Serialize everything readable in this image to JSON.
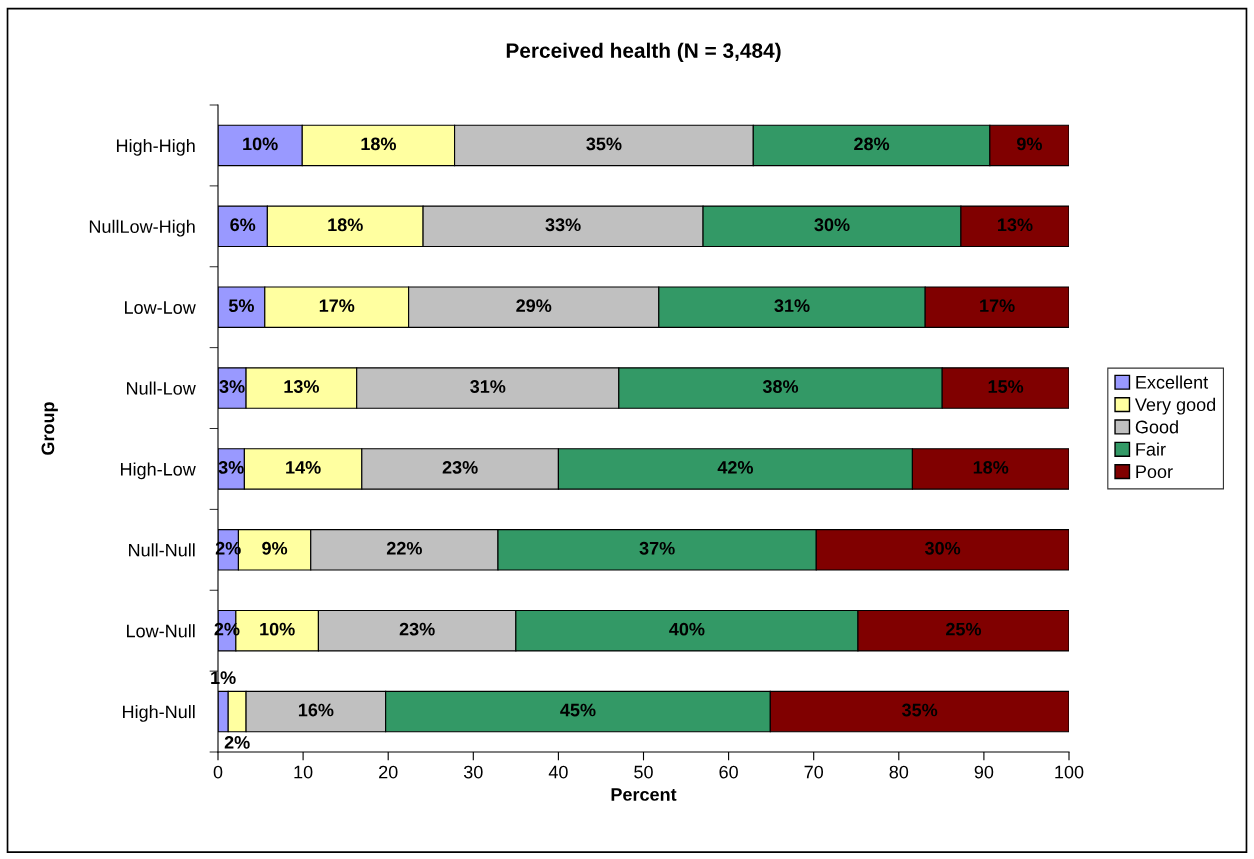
{
  "chart_data": {
    "type": "bar",
    "orientation": "horizontal",
    "stacked": true,
    "title": "Perceived health (N = 3,484)",
    "xlabel": "Percent",
    "ylabel": "Group",
    "categories": [
      "High-High",
      "NullLow-High",
      "Low-Low",
      "Null-Low",
      "High-Low",
      "Null-Null",
      "Low-Null",
      "High-Null"
    ],
    "series": [
      {
        "name": "Excellent",
        "color": "#9999ff",
        "values": [
          9.9,
          5.8,
          5.5,
          3.3,
          3.1,
          2.4,
          2.1,
          1.2
        ],
        "value_labels": [
          "10%",
          "6%",
          "5%",
          "3%",
          "3%",
          "2%",
          "2%",
          "1%"
        ]
      },
      {
        "name": "Very good",
        "color": "#ffffa0",
        "values": [
          17.9,
          18.3,
          16.9,
          13.0,
          13.8,
          8.5,
          9.7,
          2.1
        ],
        "value_labels": [
          "18%",
          "18%",
          "17%",
          "13%",
          "14%",
          "9%",
          "10%",
          "2%"
        ]
      },
      {
        "name": "Good",
        "color": "#c0c0c0",
        "values": [
          35.1,
          32.9,
          29.4,
          30.8,
          23.1,
          22.0,
          23.2,
          16.4
        ],
        "value_labels": [
          "35%",
          "33%",
          "29%",
          "31%",
          "23%",
          "22%",
          "23%",
          "16%"
        ]
      },
      {
        "name": "Fair",
        "color": "#339966",
        "values": [
          27.8,
          30.3,
          31.3,
          38.0,
          41.6,
          37.4,
          40.2,
          45.2
        ],
        "value_labels": [
          "28%",
          "30%",
          "31%",
          "38%",
          "42%",
          "37%",
          "40%",
          "45%"
        ]
      },
      {
        "name": "Poor",
        "color": "#800000",
        "values": [
          9.3,
          12.7,
          16.9,
          14.9,
          18.4,
          29.7,
          24.8,
          35.1
        ],
        "value_labels": [
          "9%",
          "13%",
          "17%",
          "15%",
          "18%",
          "30%",
          "25%",
          "35%"
        ]
      }
    ],
    "xlim": [
      0,
      100
    ],
    "xticks": [
      0,
      10,
      20,
      30,
      40,
      50,
      60,
      70,
      80,
      90,
      100
    ],
    "grid": false,
    "legend": "right"
  }
}
